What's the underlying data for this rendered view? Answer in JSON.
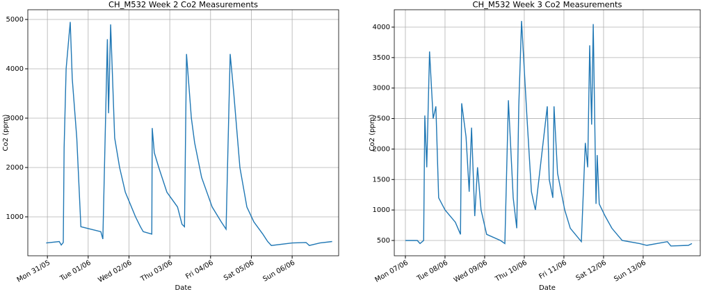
{
  "chart_data": [
    {
      "type": "line",
      "title": "CH_M532 Week 2 Co2 Measurements",
      "x_label": "Date",
      "y_label": "Co2 (ppm)",
      "color": "#1f77b4",
      "grid": true,
      "x": [
        -0.03,
        0.29,
        0.34,
        0.39,
        0.41,
        0.46,
        0.56,
        0.61,
        0.72,
        0.82,
        1.06,
        1.31,
        1.36,
        1.47,
        1.5,
        1.55,
        1.65,
        1.77,
        1.91,
        2.01,
        2.16,
        2.28,
        2.35,
        2.56,
        2.57,
        2.62,
        2.73,
        2.93,
        3.19,
        3.3,
        3.36,
        3.41,
        3.53,
        3.61,
        3.78,
        4.04,
        4.26,
        4.38,
        4.48,
        4.57,
        4.72,
        4.89,
        5.06,
        5.28,
        5.4,
        5.49,
        6.0,
        6.34,
        6.42,
        6.68,
        6.98
      ],
      "values": [
        470,
        500,
        430,
        480,
        2400,
        4000,
        4950,
        3800,
        2600,
        800,
        750,
        700,
        550,
        4600,
        3100,
        4900,
        2600,
        2000,
        1500,
        1300,
        1000,
        800,
        700,
        650,
        2800,
        2300,
        2000,
        1500,
        1200,
        850,
        800,
        4300,
        3000,
        2500,
        1800,
        1200,
        900,
        750,
        4300,
        3500,
        2000,
        1200,
        900,
        650,
        500,
        420,
        470,
        480,
        420,
        470,
        500
      ],
      "xlim": [
        -0.48,
        7.14
      ],
      "ylim": [
        211,
        5197
      ],
      "xticks": [
        {
          "value": 0,
          "label": "Mon 31/05"
        },
        {
          "value": 1,
          "label": "Tue 01/06"
        },
        {
          "value": 2,
          "label": "Wed 02/06"
        },
        {
          "value": 3,
          "label": "Thu 03/06"
        },
        {
          "value": 4,
          "label": "Fri 04/06"
        },
        {
          "value": 5,
          "label": "Sat 05/06"
        },
        {
          "value": 6,
          "label": "Sun 06/06"
        }
      ],
      "yticks": [
        1000,
        2000,
        3000,
        4000,
        5000
      ]
    },
    {
      "type": "line",
      "title": "CH_M532 Week 3 Co2 Measurements",
      "x_label": "Date",
      "y_label": "Co2 (ppm)",
      "color": "#1f77b4",
      "grid": true,
      "x": [
        0,
        0.3,
        0.37,
        0.46,
        0.49,
        0.54,
        0.61,
        0.7,
        0.77,
        0.84,
        1.0,
        1.26,
        1.39,
        1.42,
        1.53,
        1.61,
        1.67,
        1.75,
        1.82,
        1.91,
        2.05,
        2.4,
        2.51,
        2.6,
        2.72,
        2.81,
        2.86,
        2.93,
        3.07,
        3.18,
        3.28,
        3.58,
        3.63,
        3.72,
        3.75,
        3.84,
        4.02,
        4.16,
        4.44,
        4.54,
        4.6,
        4.65,
        4.7,
        4.74,
        4.81,
        4.84,
        4.89,
        5.04,
        5.21,
        5.47,
        5.91,
        6.09,
        6.61,
        6.7,
        7.14,
        7.23
      ],
      "values": [
        500,
        500,
        450,
        500,
        2550,
        1700,
        3600,
        2500,
        2700,
        1200,
        1000,
        800,
        600,
        2750,
        2200,
        1300,
        2350,
        900,
        1700,
        1000,
        600,
        500,
        450,
        2800,
        1200,
        700,
        2700,
        4100,
        2500,
        1300,
        1000,
        2700,
        1500,
        1200,
        2700,
        1600,
        1000,
        700,
        480,
        2100,
        1700,
        3700,
        2400,
        4050,
        1100,
        1900,
        1100,
        900,
        700,
        500,
        450,
        420,
        480,
        410,
        420,
        450
      ],
      "xlim": [
        -0.28,
        7.44
      ],
      "ylim": [
        249,
        4285
      ],
      "xticks": [
        {
          "value": 0,
          "label": "Mon 07/06"
        },
        {
          "value": 1,
          "label": "Tue 08/06"
        },
        {
          "value": 2,
          "label": "Wed 09/06"
        },
        {
          "value": 3,
          "label": "Thu 10/06"
        },
        {
          "value": 4,
          "label": "Fri 11/06"
        },
        {
          "value": 5,
          "label": "Sat 12/06"
        },
        {
          "value": 6,
          "label": "Sun 13/06"
        }
      ],
      "yticks": [
        500,
        1000,
        1500,
        2000,
        2500,
        3000,
        3500,
        4000
      ]
    }
  ]
}
